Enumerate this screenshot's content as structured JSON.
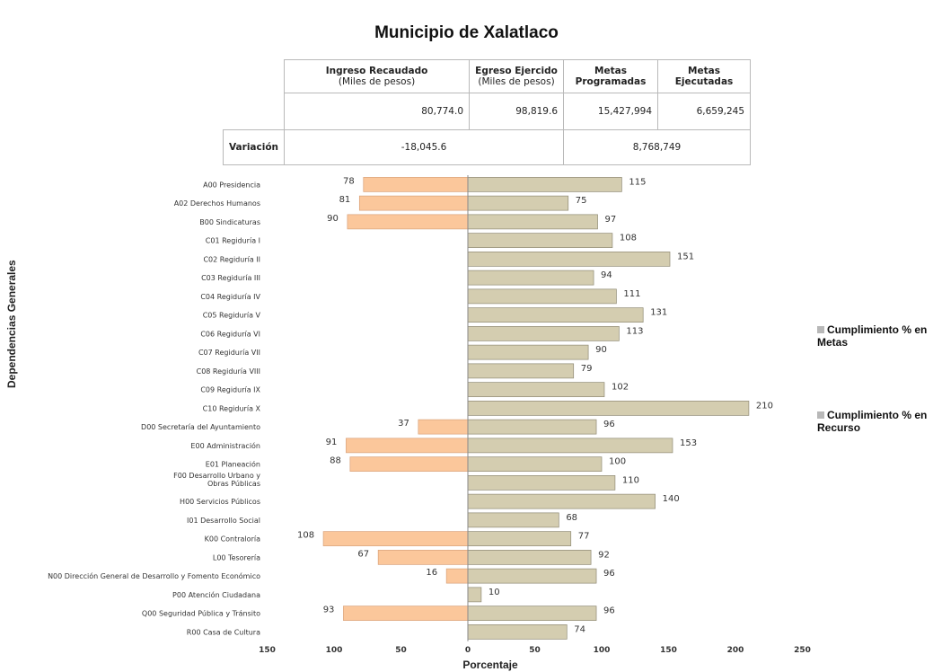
{
  "title": "Municipio de Xalatlaco",
  "summary": {
    "headers": [
      {
        "label": "Ingreso Recaudado",
        "sub": "(Miles de pesos)"
      },
      {
        "label": "Egreso Ejercido",
        "sub": "(Miles de pesos)"
      },
      {
        "label": "Metas Programadas",
        "sub": ""
      },
      {
        "label": "Metas Ejecutadas",
        "sub": ""
      }
    ],
    "values": [
      "80,774.0",
      "98,819.6",
      "15,427,994",
      "6,659,245"
    ],
    "variation_label": "Variación",
    "variation_values": [
      "-18,045.6",
      "8,768,749"
    ]
  },
  "chart_data": {
    "type": "bar",
    "orientation": "horizontal",
    "title": "Municipio de Xalatlaco",
    "xlabel": "Porcentaje",
    "ylabel": "Dependencias Generales",
    "xlim": [
      -150,
      250
    ],
    "x_ticks": [
      "150",
      "100",
      "50",
      "0",
      "50",
      "100",
      "150",
      "200",
      "250"
    ],
    "legend_position": "right",
    "categories": [
      "A00 Presidencia",
      "A02 Derechos Humanos",
      "B00 Sindicaturas",
      "C01 Regiduría I",
      "C02 Regiduría II",
      "C03 Regiduría III",
      "C04 Regiduría IV",
      "C05 Regiduría V",
      "C06 Regiduría VI",
      "C07 Regiduría VII",
      "C08 Regiduría VIII",
      "C09 Regiduría IX",
      "C10 Regiduría X",
      "D00 Secretaría del Ayuntamiento",
      "E00 Administración",
      "E01 Planeación",
      "F00 Desarrollo Urbano y Obras Públicas",
      "H00 Servicios Públicos",
      "I01 Desarrollo Social",
      "K00 Contraloría",
      "L00 Tesorería",
      "N00 Dirección General de Desarrollo y Fomento Económico",
      "P00 Atención Ciudadana",
      "Q00 Seguridad Pública y Tránsito",
      "R00 Casa de Cultura"
    ],
    "series": [
      {
        "name": "Cumplimiento % en Metas",
        "color": "#d4cdb0",
        "values": [
          115,
          75,
          97,
          108,
          151,
          94,
          111,
          131,
          113,
          90,
          79,
          102,
          210,
          96,
          153,
          100,
          110,
          140,
          68,
          77,
          92,
          96,
          10,
          96,
          74
        ]
      },
      {
        "name": "Cumplimiento % en Recurso",
        "color": "#fbc79b",
        "values": [
          78,
          81,
          90,
          null,
          null,
          null,
          null,
          null,
          null,
          null,
          null,
          null,
          null,
          37,
          91,
          88,
          null,
          null,
          null,
          108,
          67,
          16,
          null,
          93,
          null
        ]
      }
    ]
  }
}
